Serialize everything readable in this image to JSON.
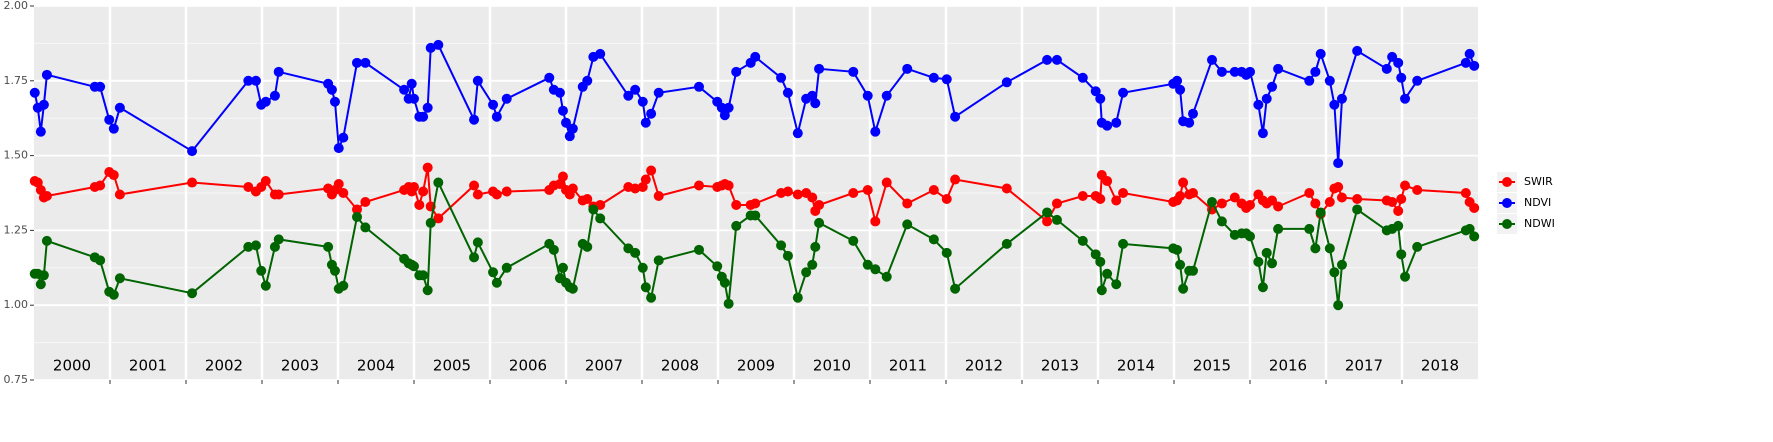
{
  "chart_data": {
    "type": "line",
    "x": [
      2000.01,
      2000.05,
      2000.09,
      2000.13,
      2000.17,
      2000.8,
      2000.87,
      2000.99,
      2001.05,
      2001.13,
      2002.08,
      2002.82,
      2002.92,
      2002.99,
      2003.05,
      2003.17,
      2003.22,
      2003.87,
      2003.92,
      2003.96,
      2004.01,
      2004.07,
      2004.25,
      2004.36,
      2004.87,
      2004.93,
      2004.97,
      2005.0,
      2005.07,
      2005.12,
      2005.18,
      2005.22,
      2005.32,
      2005.79,
      2005.84,
      2006.04,
      2006.09,
      2006.22,
      2006.78,
      2006.84,
      2006.92,
      2006.96,
      2007.0,
      2007.05,
      2007.09,
      2007.22,
      2007.28,
      2007.36,
      2007.45,
      2007.82,
      2007.91,
      2008.01,
      2008.05,
      2008.12,
      2008.22,
      2008.75,
      2008.99,
      2009.05,
      2009.09,
      2009.14,
      2009.24,
      2009.43,
      2009.49,
      2009.83,
      2009.92,
      2010.05,
      2010.16,
      2010.24,
      2010.28,
      2010.33,
      2010.78,
      2010.97,
      2011.07,
      2011.22,
      2011.49,
      2011.84,
      2012.01,
      2012.12,
      2012.8,
      2013.33,
      2013.46,
      2013.8,
      2013.97,
      2014.03,
      2014.05,
      2014.12,
      2014.24,
      2014.33,
      2014.99,
      2015.04,
      2015.08,
      2015.12,
      2015.2,
      2015.25,
      2015.5,
      2015.63,
      2015.8,
      2015.89,
      2015.95,
      2016.0,
      2016.11,
      2016.17,
      2016.22,
      2016.29,
      2016.37,
      2016.78,
      2016.86,
      2016.93,
      2017.05,
      2017.11,
      2017.16,
      2017.21,
      2017.41,
      2017.8,
      2017.87,
      2017.95,
      2017.99,
      2018.04,
      2018.2,
      2018.84,
      2018.89,
      2018.95
    ],
    "series": [
      {
        "name": "SWIR",
        "color": "#ff0000",
        "values": [
          1.415,
          1.41,
          1.385,
          1.36,
          1.365,
          1.395,
          1.4,
          1.445,
          1.435,
          1.37,
          1.41,
          1.395,
          1.38,
          1.395,
          1.415,
          1.37,
          1.37,
          1.39,
          1.37,
          1.385,
          1.405,
          1.375,
          1.32,
          1.345,
          1.385,
          1.395,
          1.38,
          1.395,
          1.335,
          1.38,
          1.46,
          1.33,
          1.29,
          1.4,
          1.37,
          1.38,
          1.37,
          1.38,
          1.385,
          1.4,
          1.405,
          1.43,
          1.385,
          1.37,
          1.39,
          1.35,
          1.355,
          1.33,
          1.335,
          1.395,
          1.39,
          1.395,
          1.42,
          1.45,
          1.365,
          1.4,
          1.395,
          1.4,
          1.405,
          1.4,
          1.335,
          1.335,
          1.34,
          1.375,
          1.38,
          1.37,
          1.375,
          1.36,
          1.315,
          1.335,
          1.375,
          1.385,
          1.28,
          1.41,
          1.34,
          1.385,
          1.355,
          1.42,
          1.39,
          1.28,
          1.34,
          1.365,
          1.365,
          1.355,
          1.435,
          1.415,
          1.35,
          1.375,
          1.345,
          1.35,
          1.365,
          1.41,
          1.37,
          1.375,
          1.32,
          1.34,
          1.36,
          1.34,
          1.325,
          1.335,
          1.37,
          1.35,
          1.34,
          1.35,
          1.33,
          1.375,
          1.34,
          1.305,
          1.345,
          1.39,
          1.395,
          1.36,
          1.355,
          1.35,
          1.345,
          1.315,
          1.355,
          1.4,
          1.385,
          1.375,
          1.345,
          1.325
        ]
      },
      {
        "name": "NDVI",
        "color": "#0000ff",
        "values": [
          1.71,
          1.66,
          1.58,
          1.67,
          1.77,
          1.73,
          1.73,
          1.62,
          1.59,
          1.66,
          1.515,
          1.75,
          1.75,
          1.67,
          1.68,
          1.7,
          1.78,
          1.74,
          1.72,
          1.68,
          1.525,
          1.56,
          1.81,
          1.81,
          1.72,
          1.69,
          1.74,
          1.69,
          1.63,
          1.63,
          1.66,
          1.86,
          1.87,
          1.62,
          1.75,
          1.67,
          1.63,
          1.69,
          1.76,
          1.72,
          1.71,
          1.65,
          1.61,
          1.565,
          1.59,
          1.73,
          1.75,
          1.83,
          1.84,
          1.7,
          1.72,
          1.68,
          1.61,
          1.64,
          1.71,
          1.73,
          1.68,
          1.66,
          1.635,
          1.66,
          1.78,
          1.81,
          1.83,
          1.76,
          1.71,
          1.575,
          1.69,
          1.7,
          1.675,
          1.79,
          1.78,
          1.7,
          1.58,
          1.7,
          1.79,
          1.76,
          1.755,
          1.63,
          1.745,
          1.82,
          1.82,
          1.76,
          1.715,
          1.69,
          1.61,
          1.6,
          1.61,
          1.71,
          1.74,
          1.75,
          1.72,
          1.615,
          1.61,
          1.64,
          1.82,
          1.78,
          1.78,
          1.78,
          1.77,
          1.78,
          1.67,
          1.575,
          1.69,
          1.73,
          1.79,
          1.75,
          1.78,
          1.84,
          1.75,
          1.67,
          1.475,
          1.69,
          1.85,
          1.79,
          1.83,
          1.81,
          1.76,
          1.69,
          1.75,
          1.81,
          1.84,
          1.8
        ]
      },
      {
        "name": "NDWI",
        "color": "#006400",
        "values": [
          1.105,
          1.105,
          1.07,
          1.1,
          1.215,
          1.16,
          1.15,
          1.045,
          1.035,
          1.09,
          1.04,
          1.195,
          1.2,
          1.115,
          1.065,
          1.195,
          1.22,
          1.195,
          1.135,
          1.115,
          1.055,
          1.065,
          1.295,
          1.26,
          1.155,
          1.14,
          1.135,
          1.13,
          1.1,
          1.1,
          1.05,
          1.275,
          1.41,
          1.16,
          1.21,
          1.11,
          1.075,
          1.125,
          1.205,
          1.185,
          1.09,
          1.125,
          1.075,
          1.06,
          1.055,
          1.205,
          1.195,
          1.32,
          1.29,
          1.19,
          1.175,
          1.125,
          1.06,
          1.025,
          1.15,
          1.185,
          1.13,
          1.095,
          1.075,
          1.005,
          1.265,
          1.3,
          1.3,
          1.2,
          1.165,
          1.025,
          1.11,
          1.135,
          1.195,
          1.275,
          1.215,
          1.135,
          1.12,
          1.095,
          1.27,
          1.22,
          1.175,
          1.055,
          1.205,
          1.31,
          1.285,
          1.215,
          1.17,
          1.145,
          1.05,
          1.105,
          1.07,
          1.205,
          1.19,
          1.185,
          1.135,
          1.055,
          1.115,
          1.115,
          1.345,
          1.28,
          1.235,
          1.24,
          1.24,
          1.23,
          1.145,
          1.06,
          1.175,
          1.14,
          1.255,
          1.255,
          1.19,
          1.31,
          1.19,
          1.11,
          1.0,
          1.135,
          1.32,
          1.25,
          1.255,
          1.265,
          1.17,
          1.095,
          1.195,
          1.25,
          1.255,
          1.23
        ]
      }
    ],
    "xlim": [
      2000,
      2019
    ],
    "xticks": [
      2001,
      2002,
      2003,
      2004,
      2005,
      2006,
      2007,
      2008,
      2009,
      2010,
      2011,
      2012,
      2013,
      2014,
      2015,
      2016,
      2017,
      2018
    ],
    "ylim": [
      0.75,
      2.0
    ],
    "yticks": [
      {
        "value": 0.75,
        "label": "0.75"
      },
      {
        "value": 1,
        "label": "1.00"
      },
      {
        "value": 1.25,
        "label": "1.25"
      },
      {
        "value": 1.5,
        "label": "1.50"
      },
      {
        "value": 1.75,
        "label": "1.75"
      },
      {
        "value": 2,
        "label": "2.00"
      }
    ],
    "year_labels": [
      "2000",
      "2001",
      "2002",
      "2003",
      "2004",
      "2005",
      "2006",
      "2007",
      "2008",
      "2009",
      "2010",
      "2011",
      "2012",
      "2013",
      "2014",
      "2015",
      "2016",
      "2017",
      "2018"
    ],
    "grid": true
  }
}
